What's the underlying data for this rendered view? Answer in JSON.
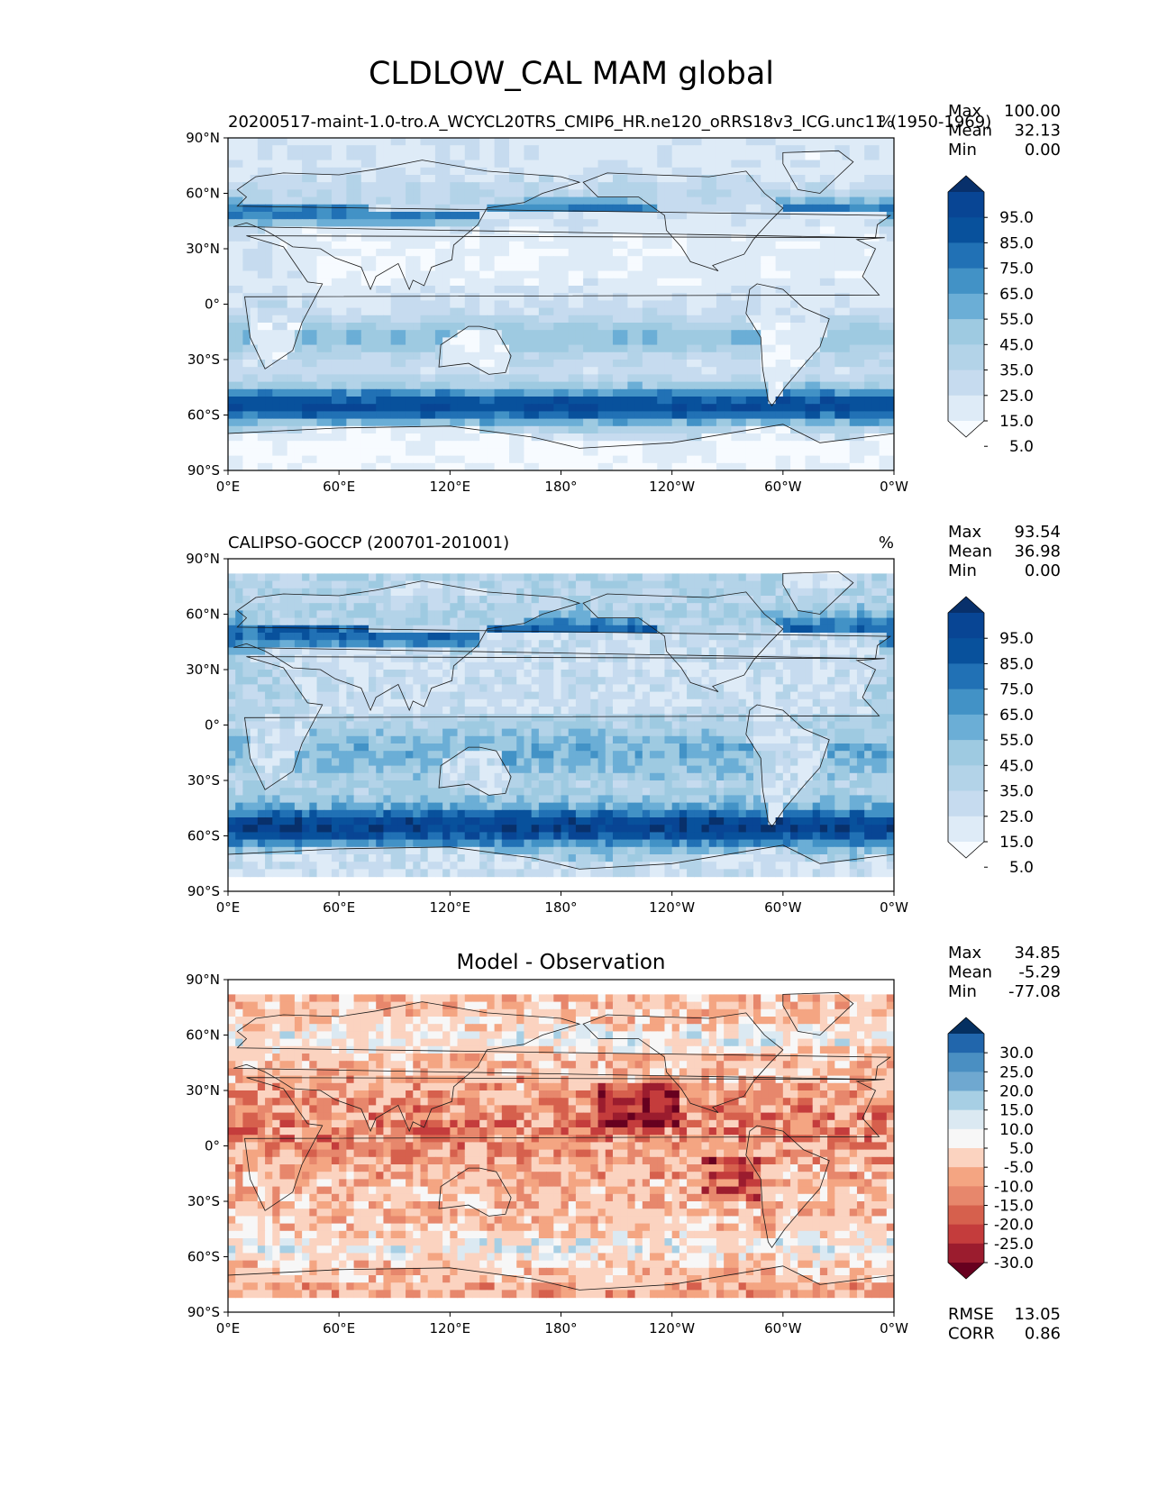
{
  "figure": {
    "title": "CLDLOW_CAL MAM global"
  },
  "colors": {
    "blues": [
      "#f7fbff",
      "#deebf7",
      "#c6dbef",
      "#b3d3e8",
      "#9ecae1",
      "#6baed6",
      "#4292c6",
      "#2171b5",
      "#08519c",
      "#084594",
      "#08306b"
    ],
    "rdbu": [
      "#67001f",
      "#9b1c2e",
      "#c43c3c",
      "#d6604d",
      "#e7876c",
      "#f4a582",
      "#fbd3c0",
      "#f7f7f7",
      "#dbe9f2",
      "#a7cfe4",
      "#6fa8d0",
      "#4a8fc2",
      "#2166ac",
      "#053061"
    ],
    "coast": "#1a1a1a"
  },
  "chart_data": [
    {
      "type": "heatmap",
      "title_left": "20200517-maint-1.0-tro.A_WCYCL20TRS_CMIP6_HR.ne120_oRRS18v3_ICG.unc11 (1950-1969)",
      "title_center": "",
      "title_right": "%",
      "xticks": [
        "0°E",
        "60°E",
        "120°E",
        "180°",
        "120°W",
        "60°W",
        "0°W"
      ],
      "yticks": [
        "90°N",
        "60°N",
        "30°N",
        "0°",
        "30°S",
        "60°S",
        "90°S"
      ],
      "xlim": [
        0,
        360
      ],
      "ylim": [
        -90,
        90
      ],
      "stats": {
        "max": "100.00",
        "mean": "32.13",
        "min": "0.00"
      },
      "stat_labels": {
        "max": "Max",
        "mean": "Mean",
        "min": "Min"
      },
      "colorbar_ticks": [
        "95.0",
        "85.0",
        "75.0",
        "65.0",
        "55.0",
        "45.0",
        "35.0",
        "25.0",
        "15.0",
        "5.0"
      ],
      "colormap": "blues"
    },
    {
      "type": "heatmap",
      "title_left": "CALIPSO-GOCCP (200701-201001)",
      "title_center": "",
      "title_right": "%",
      "xticks": [
        "0°E",
        "60°E",
        "120°E",
        "180°",
        "120°W",
        "60°W",
        "0°W"
      ],
      "yticks": [
        "90°N",
        "60°N",
        "30°N",
        "0°",
        "30°S",
        "60°S",
        "90°S"
      ],
      "xlim": [
        0,
        360
      ],
      "ylim": [
        -90,
        90
      ],
      "stats": {
        "max": "93.54",
        "mean": "36.98",
        "min": "0.00"
      },
      "stat_labels": {
        "max": "Max",
        "mean": "Mean",
        "min": "Min"
      },
      "colorbar_ticks": [
        "95.0",
        "85.0",
        "75.0",
        "65.0",
        "55.0",
        "45.0",
        "35.0",
        "25.0",
        "15.0",
        "5.0"
      ],
      "colormap": "blues"
    },
    {
      "type": "heatmap",
      "title_left": "",
      "title_center": "Model - Observation",
      "title_right": "",
      "xticks": [
        "0°E",
        "60°E",
        "120°E",
        "180°",
        "120°W",
        "60°W",
        "0°W"
      ],
      "yticks": [
        "90°N",
        "60°N",
        "30°N",
        "0°",
        "30°S",
        "60°S",
        "90°S"
      ],
      "xlim": [
        0,
        360
      ],
      "ylim": [
        -90,
        90
      ],
      "stats": {
        "max": "34.85",
        "mean": "-5.29",
        "min": "-77.08"
      },
      "stat_labels": {
        "max": "Max",
        "mean": "Mean",
        "min": "Min"
      },
      "colorbar_ticks": [
        "30.0",
        "25.0",
        "20.0",
        "15.0",
        "10.0",
        "5.0",
        "-5.0",
        "-10.0",
        "-15.0",
        "-20.0",
        "-25.0",
        "-30.0"
      ],
      "colormap": "rdbu",
      "extra_stats": {
        "rmse_label": "RMSE",
        "rmse": "13.05",
        "corr_label": "CORR",
        "corr": "0.86"
      }
    }
  ]
}
